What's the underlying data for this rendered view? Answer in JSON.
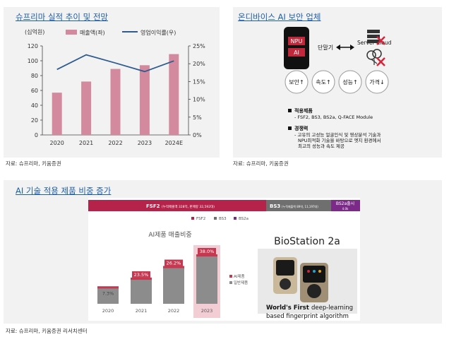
{
  "colors": {
    "title_blue": "#1f5fa8",
    "panel_bg": "#f2f2f2",
    "bar_pink": "#d48a9e",
    "line_blue": "#2f5b8e",
    "banner_red": "#b5224a",
    "banner_gray": "#6f6f6f",
    "banner_purple": "#7b2a88",
    "ai_bar_red": "#c8374f",
    "ai_bar_gray": "#8c8c8c",
    "highlight_pink": "#f3cdd4"
  },
  "panel1": {
    "title": "슈프리마 실적 추이 및 전망",
    "source": "자료: 슈프리마, 키움증권",
    "chart_data": {
      "type": "bar+line",
      "categories": [
        "2020",
        "2021",
        "2022",
        "2023",
        "2024E"
      ],
      "left_axis_unit": "(십억원)",
      "left_ticks": [
        "0",
        "20",
        "40",
        "60",
        "80",
        "100",
        "120"
      ],
      "right_ticks": [
        "0%",
        "5%",
        "10%",
        "15%",
        "20%",
        "25%"
      ],
      "ylim": [
        0,
        120
      ],
      "ylim_right": [
        0,
        25
      ],
      "series": [
        {
          "name": "매출액(좌)",
          "type": "bar",
          "axis": "left",
          "values": [
            57,
            72,
            89,
            94,
            109
          ]
        },
        {
          "name": "영업이익률(우)",
          "type": "line",
          "axis": "right",
          "values": [
            18.4,
            22.5,
            20.2,
            17.8,
            20.8
          ]
        }
      ],
      "legend": "top"
    }
  },
  "panel2": {
    "title": "온디바이스 AI 보안 업체",
    "source": "자료: 슈프리마, 키움증권",
    "device_labels": [
      "NPU",
      "AI"
    ],
    "terminal_label": "단말기",
    "server_label": "Server Cloud",
    "benefits": [
      "보안↑",
      "속도↑",
      "성능↑",
      "가격↓"
    ],
    "notes": [
      {
        "head": "적용제품",
        "lines": [
          "- FSF2, BS3, BS2a, Q-FACE Module"
        ]
      },
      {
        "head": "경쟁력",
        "lines": [
          "- 고유의 고성능 얼굴인식 및 영상분석 기술과",
          "NPU최적화 기술을 바탕으로 엣지 환경에서",
          "최고의 성능과 속도 제공"
        ]
      }
    ]
  },
  "panel3": {
    "title": "AI 기술 적용 제품 비중 증가",
    "source": "자료: 슈프리마, 키움증권 리서치센터",
    "banner": {
      "fsf2_label": "FSF2",
      "fsf2_note": "(누적매출액 328억, 판매량 32,592대)",
      "bs3_label": "BS3",
      "bs3_note": "(누적매출액 89억, 11,197대)",
      "bs2a_label": "BS2a출시",
      "bs2a_note": "4.0k"
    },
    "product_legend": [
      "FSF2",
      "BS3",
      "BS2a"
    ],
    "chart_data": {
      "type": "bar",
      "title": "AI제품 매출비중",
      "categories": [
        "2020",
        "2021",
        "2022",
        "2023"
      ],
      "series": [
        {
          "name": "AI제품",
          "values": [
            7.3,
            23.5,
            26.2,
            38.0
          ]
        },
        {
          "name": "일반제품",
          "values": [
            92.7,
            76.5,
            73.8,
            62.0
          ]
        }
      ],
      "totals": [
        30,
        45,
        65,
        85
      ],
      "labels": [
        "7.3%",
        "23.5%",
        "26.2%",
        "38.0%"
      ]
    },
    "product_title": "BioStation 2a",
    "tagline_bold": "World's First",
    "tagline_rest": "deep-learning",
    "tagline_line2": "based fingerprint algorithm"
  }
}
